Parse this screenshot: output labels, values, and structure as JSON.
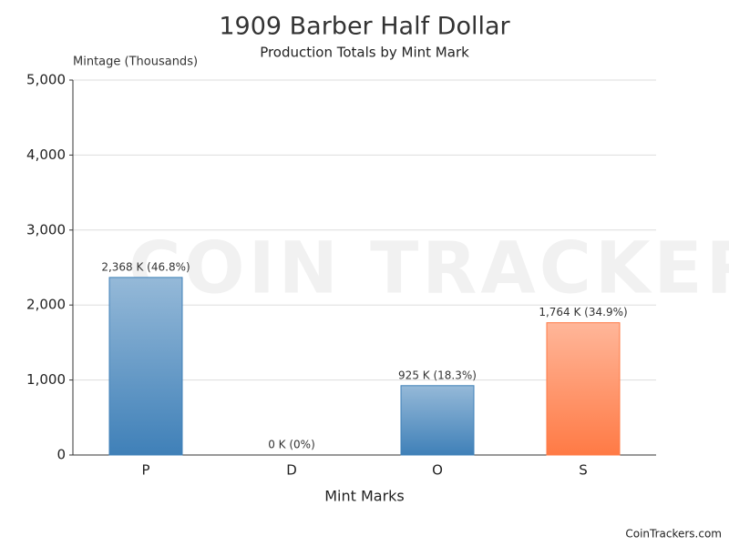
{
  "chart_data": {
    "type": "bar",
    "title": "1909 Barber Half Dollar",
    "subtitle": "Production Totals by Mint Mark",
    "y_label": "Mintage (Thousands)",
    "x_label": "Mint Marks",
    "watermark": "COIN TRACKERS",
    "footer": "CoinTrackers.com",
    "categories": [
      "P",
      "D",
      "O",
      "S"
    ],
    "values": [
      2368,
      0,
      925,
      1764
    ],
    "value_labels": [
      "2,368 K (46.8%)",
      "0 K (0%)",
      "925 K (18.3%)",
      "1,764 K (34.9%)"
    ],
    "colors": [
      "#3f80b8",
      "#3f80b8",
      "#3f80b8",
      "#ff7a45"
    ],
    "ylim": [
      0,
      5000
    ],
    "yticks": [
      0,
      {
        "value": 1000,
        "label": "1,000"
      },
      {
        "value": 2000,
        "label": "2,000"
      },
      {
        "value": 3000,
        "label": "3,000"
      },
      {
        "value": 4000,
        "label": "4,000"
      },
      {
        "value": 5000,
        "label": "5,000"
      }
    ],
    "grid": true
  }
}
